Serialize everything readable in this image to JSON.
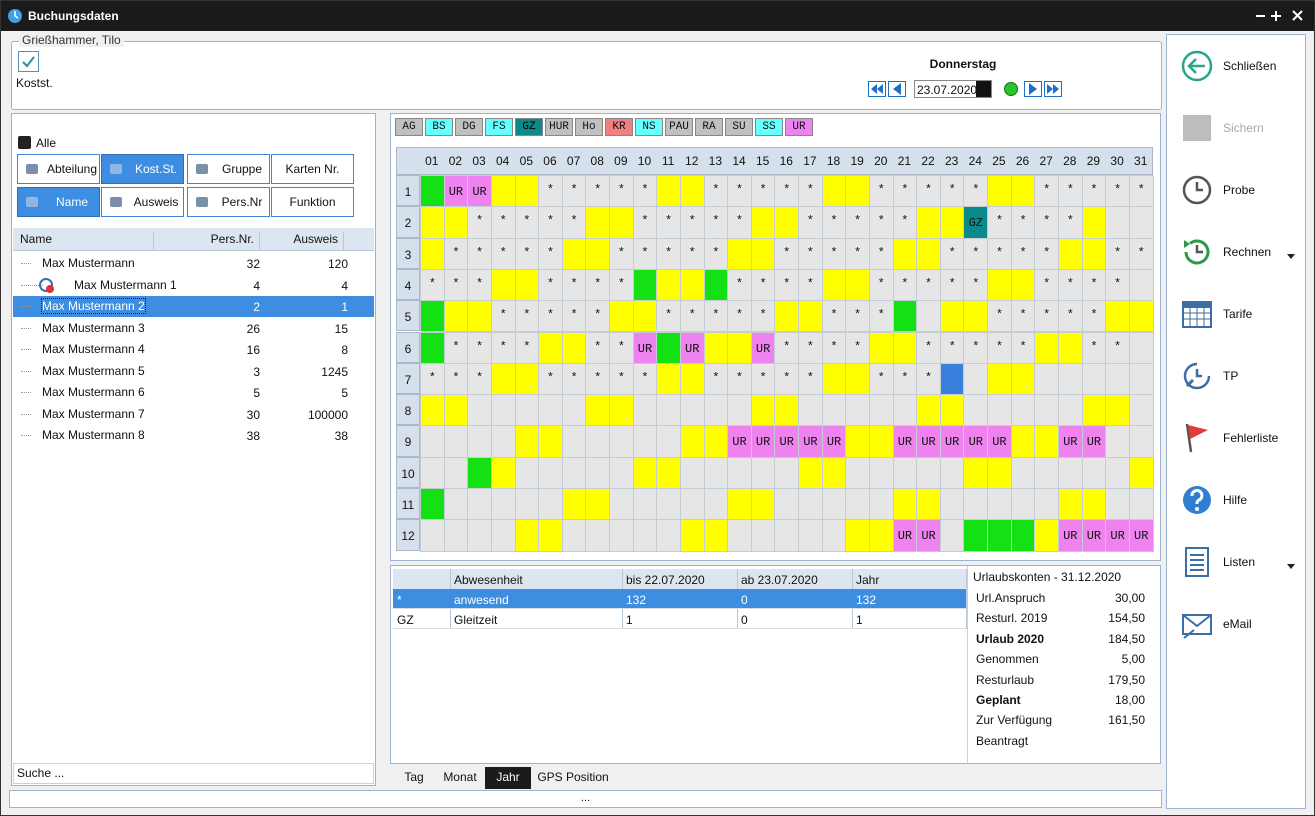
{
  "window": {
    "title": "Buchungsdaten"
  },
  "header": {
    "group": "Grießhammer, Tilo",
    "checkbox": "Kostst.",
    "day": "Donnerstag",
    "date": "23.07.2020"
  },
  "filter": {
    "all": "Alle",
    "buttons": [
      "Abteilung",
      "Kost.St.",
      "Gruppe",
      "Karten Nr.",
      "Name",
      "Ausweis",
      "Pers.Nr",
      "Funktion"
    ],
    "active": [
      1,
      4
    ]
  },
  "employees": {
    "columns": [
      "Name",
      "Pers.Nr.",
      "Ausweis"
    ],
    "selected": 2,
    "search": "Suche ...",
    "rows": [
      {
        "name": "Max Mustermann",
        "pers_nr": 32,
        "ausweis": 120,
        "level": 0
      },
      {
        "name": "Max Mustermann 1",
        "pers_nr": 4,
        "ausweis": 4,
        "level": 1
      },
      {
        "name": "Max Mustermann 2",
        "pers_nr": 2,
        "ausweis": 1,
        "level": 0
      },
      {
        "name": "Max Mustermann 3",
        "pers_nr": 26,
        "ausweis": 15,
        "level": 0
      },
      {
        "name": "Max Mustermann 4",
        "pers_nr": 16,
        "ausweis": 8,
        "level": 0
      },
      {
        "name": "Max Mustermann 5",
        "pers_nr": 3,
        "ausweis": 1245,
        "level": 0
      },
      {
        "name": "Max Mustermann 6",
        "pers_nr": 5,
        "ausweis": 5,
        "level": 0
      },
      {
        "name": "Max Mustermann 7",
        "pers_nr": 30,
        "ausweis": 100000,
        "level": 0
      },
      {
        "name": "Max Mustermann 8",
        "pers_nr": 38,
        "ausweis": 38,
        "level": 0
      }
    ]
  },
  "calendar": {
    "codes": [
      {
        "label": "AG",
        "color": "#c0c0c0"
      },
      {
        "label": "BS",
        "color": "#66ffff"
      },
      {
        "label": "DG",
        "color": "#c0c0c0"
      },
      {
        "label": "FS",
        "color": "#66ffff"
      },
      {
        "label": "GZ",
        "color": "#0a8a8a"
      },
      {
        "label": "HUR",
        "color": "#c0c0c0"
      },
      {
        "label": "Ho",
        "color": "#c0c0c0"
      },
      {
        "label": "KR",
        "color": "#f08080"
      },
      {
        "label": "NS",
        "color": "#66ffff"
      },
      {
        "label": "PAU",
        "color": "#c0c0c0"
      },
      {
        "label": "RA",
        "color": "#c0c0c0"
      },
      {
        "label": "SU",
        "color": "#c0c0c0"
      },
      {
        "label": "SS",
        "color": "#66ffff"
      },
      {
        "label": "UR",
        "color": "#ee82ee"
      }
    ],
    "palette": {
      "Y": "#ffff00",
      "G": "#13e113",
      "P": "#ee82ee",
      "B": "#3a7fdc",
      "T": "#0a8a8a",
      ".": "#e6e6e6"
    },
    "days": [
      "01",
      "02",
      "03",
      "04",
      "05",
      "06",
      "07",
      "08",
      "09",
      "10",
      "11",
      "12",
      "13",
      "14",
      "15",
      "16",
      "17",
      "18",
      "19",
      "20",
      "21",
      "22",
      "23",
      "24",
      "25",
      "26",
      "27",
      "28",
      "29",
      "30",
      "31"
    ],
    "months": [
      1,
      2,
      3,
      4,
      5,
      6,
      7,
      8,
      9,
      10,
      11,
      12
    ],
    "rows": [
      {
        "colors": "GPPYY.....YY.....YY.....YY.....",
        "texts": [
          null,
          "UR",
          "UR",
          null,
          null,
          "*",
          "*",
          "*",
          "*",
          "*",
          null,
          null,
          "*",
          "*",
          "*",
          "*",
          "*",
          null,
          null,
          "*",
          "*",
          "*",
          "*",
          "*",
          null,
          null,
          "*",
          "*",
          "*",
          "*",
          "*"
        ]
      },
      {
        "colors": "YY.....YY.....YY.....YYT....Y..",
        "texts": [
          null,
          null,
          "*",
          "*",
          "*",
          "*",
          "*",
          null,
          null,
          "*",
          "*",
          "*",
          "*",
          "*",
          null,
          null,
          "*",
          "*",
          "*",
          "*",
          "*",
          null,
          null,
          "GZ",
          "*",
          "*",
          "*",
          "*",
          null,
          null,
          null
        ]
      },
      {
        "colors": "Y.....YY.....YY.....YY.....YY..",
        "texts": [
          null,
          "*",
          "*",
          "*",
          "*",
          "*",
          null,
          null,
          "*",
          "*",
          "*",
          "*",
          "*",
          null,
          null,
          "*",
          "*",
          "*",
          "*",
          "*",
          null,
          null,
          "*",
          "*",
          "*",
          "*",
          "*",
          null,
          null,
          "*",
          "*"
        ]
      },
      {
        "colors": "...YY....GYYG....YY.....YY.....",
        "texts": [
          "*",
          "*",
          "*",
          null,
          null,
          "*",
          "*",
          "*",
          "*",
          null,
          null,
          null,
          null,
          "*",
          "*",
          "*",
          "*",
          null,
          null,
          "*",
          "*",
          "*",
          "*",
          "*",
          null,
          null,
          "*",
          "*",
          "*",
          "*",
          null
        ]
      },
      {
        "colors": "GYY.....YY.....YY...G.YY.....YY",
        "texts": [
          null,
          null,
          null,
          "*",
          "*",
          "*",
          "*",
          "*",
          null,
          null,
          "*",
          "*",
          "*",
          "*",
          "*",
          null,
          null,
          "*",
          "*",
          "*",
          null,
          null,
          null,
          null,
          "*",
          "*",
          "*",
          "*",
          "*",
          null,
          null
        ]
      },
      {
        "colors": "G....YY..PGPYYP....YY.....YY...",
        "texts": [
          null,
          "*",
          "*",
          "*",
          "*",
          null,
          null,
          "*",
          "*",
          "UR",
          null,
          "UR",
          null,
          null,
          "UR",
          "*",
          "*",
          "*",
          "*",
          null,
          null,
          "*",
          "*",
          "*",
          "*",
          "*",
          null,
          null,
          "*",
          "*",
          null
        ]
      },
      {
        "colors": "...YY.....YY.....YY...B.YY.....",
        "texts": [
          "*",
          "*",
          "*",
          null,
          null,
          "*",
          "*",
          "*",
          "*",
          "*",
          null,
          null,
          "*",
          "*",
          "*",
          "*",
          "*",
          null,
          null,
          "*",
          "*",
          "*",
          null,
          null,
          null,
          null,
          null,
          null,
          null,
          null,
          null
        ]
      },
      {
        "colors": "YY.....YY.....YY.....YY.....YY.",
        "texts": [
          null,
          null,
          null,
          null,
          null,
          null,
          null,
          null,
          null,
          null,
          null,
          null,
          null,
          null,
          null,
          null,
          null,
          null,
          null,
          null,
          null,
          null,
          null,
          null,
          null,
          null,
          null,
          null,
          null,
          null,
          null
        ]
      },
      {
        "colors": "....YY.....YYPPPPPYYPPPPPYYPP..",
        "texts": [
          null,
          null,
          null,
          null,
          null,
          null,
          null,
          null,
          null,
          null,
          null,
          null,
          null,
          "UR",
          "UR",
          "UR",
          "UR",
          "UR",
          null,
          null,
          "UR",
          "UR",
          "UR",
          "UR",
          "UR",
          null,
          null,
          "UR",
          "UR",
          null,
          null
        ]
      },
      {
        "colors": "..GY.....YY.....YY.....YY.....Y",
        "texts": [
          null,
          null,
          null,
          null,
          null,
          null,
          null,
          null,
          null,
          null,
          null,
          null,
          null,
          null,
          null,
          null,
          null,
          null,
          null,
          null,
          null,
          null,
          null,
          null,
          null,
          null,
          null,
          null,
          null,
          null,
          null
        ]
      },
      {
        "colors": "G.....YY.....YY.....YY.....YY..",
        "texts": [
          null,
          null,
          null,
          null,
          null,
          null,
          null,
          null,
          null,
          null,
          null,
          null,
          null,
          null,
          null,
          null,
          null,
          null,
          null,
          null,
          null,
          null,
          null,
          null,
          null,
          null,
          null,
          null,
          null,
          null,
          null
        ]
      },
      {
        "colors": "....YY.....YY.....YYPP.GGGYPPPP",
        "texts": [
          null,
          null,
          null,
          null,
          null,
          null,
          null,
          null,
          null,
          null,
          null,
          null,
          null,
          null,
          null,
          null,
          null,
          null,
          null,
          null,
          "UR",
          "UR",
          null,
          null,
          null,
          null,
          null,
          "UR",
          "UR",
          "UR",
          "UR"
        ]
      }
    ]
  },
  "absence_table": {
    "columns": [
      "Abwesenheit",
      "bis 22.07.2020",
      "ab 23.07.2020",
      "Jahr"
    ],
    "selected": 0,
    "rows": [
      [
        "*",
        "anwesend",
        132,
        0,
        132
      ],
      [
        "GZ",
        "Gleitzeit",
        1,
        0,
        1
      ]
    ]
  },
  "accounts": {
    "title": "Urlaubskonten - 31.12.2020",
    "rows": [
      {
        "label": "Url.Anspruch",
        "value": "30,00"
      },
      {
        "label": "Resturl. 2019",
        "value": "154,50"
      },
      {
        "label": "Urlaub 2020",
        "value": "184,50",
        "bold": true
      },
      {
        "label": "Genommen",
        "value": "5,00"
      },
      {
        "label": "Resturlaub",
        "value": "179,50"
      },
      {
        "label": "Geplant",
        "value": "18,00",
        "bold": true
      },
      {
        "label": "Zur Verfügung",
        "value": "161,50"
      },
      {
        "label": "Beantragt"
      }
    ]
  },
  "tabs": {
    "items": [
      "Tag",
      "Monat",
      "Jahr",
      "GPS Position"
    ],
    "active": 2
  },
  "status": "...",
  "sidebar": [
    {
      "label": "Schließen"
    },
    {
      "label": "Sichern",
      "disabled": true
    },
    {
      "label": "Probe"
    },
    {
      "label": "Rechnen",
      "menu": true
    },
    {
      "label": "Tarife"
    },
    {
      "label": "TP"
    },
    {
      "label": "Fehlerliste"
    },
    {
      "label": "Hilfe"
    },
    {
      "label": "Listen",
      "menu": true
    },
    {
      "label": "eMail"
    }
  ]
}
